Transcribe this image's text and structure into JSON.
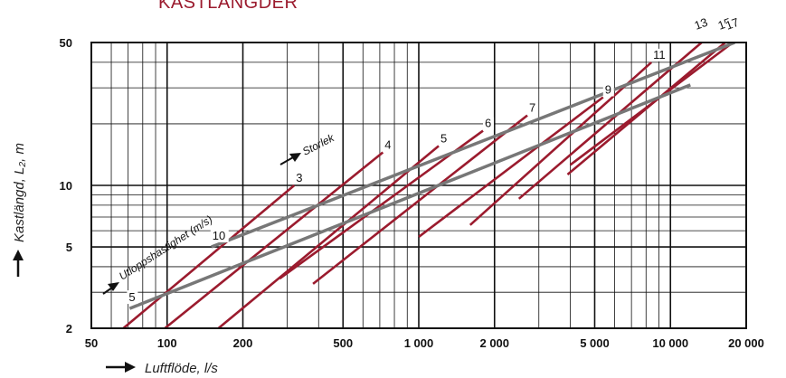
{
  "chart_data": {
    "type": "line",
    "title": "KASTLÄNGDER",
    "xlabel": "Luftflöde, l/s",
    "ylabel": "Kastlängd, L₂, m",
    "xscale": "log",
    "yscale": "log",
    "xlim": [
      50,
      20000
    ],
    "ylim": [
      2,
      50
    ],
    "x_ticks": [
      {
        "value": 50,
        "label": "50"
      },
      {
        "value": 100,
        "label": "100"
      },
      {
        "value": 200,
        "label": "200"
      },
      {
        "value": 500,
        "label": "500"
      },
      {
        "value": 1000,
        "label": "1 000"
      },
      {
        "value": 2000,
        "label": "2 000"
      },
      {
        "value": 5000,
        "label": "5 000"
      },
      {
        "value": 10000,
        "label": "10 000"
      },
      {
        "value": 20000,
        "label": "20 000"
      }
    ],
    "y_ticks": [
      {
        "value": 2,
        "label": "2"
      },
      {
        "value": 5,
        "label": "5"
      },
      {
        "value": 10,
        "label": "10"
      },
      {
        "value": 50,
        "label": "50"
      }
    ],
    "grid": true,
    "annotations": {
      "size_axis": "Storlek",
      "velocity_axis": "Utloppshastighet (m/s)"
    },
    "size_series": [
      {
        "name": "3",
        "x": [
          67,
          320
        ],
        "y": [
          2,
          10
        ]
      },
      {
        "name": "4",
        "x": [
          98,
          720
        ],
        "y": [
          2,
          14.5
        ]
      },
      {
        "name": "5",
        "x": [
          160,
          1200
        ],
        "y": [
          2,
          15.6
        ]
      },
      {
        "name": "6",
        "x": [
          280,
          1800
        ],
        "y": [
          3.5,
          18.5
        ]
      },
      {
        "name": "7",
        "x": [
          380,
          2700
        ],
        "y": [
          3.3,
          22
        ]
      },
      {
        "name": "9",
        "x": [
          1000,
          5400
        ],
        "y": [
          5.6,
          27
        ]
      },
      {
        "name": "11",
        "x": [
          1600,
          8400
        ],
        "y": [
          6.4,
          40
        ]
      },
      {
        "name": "13",
        "x": [
          2500,
          13300
        ],
        "y": [
          8.6,
          50
        ]
      },
      {
        "name": "15",
        "x": [
          3900,
          16500
        ],
        "y": [
          11.3,
          50
        ]
      },
      {
        "name": "17",
        "x": [
          4000,
          17700
        ],
        "y": [
          12.6,
          50
        ]
      }
    ],
    "velocity_series": [
      {
        "name": "5",
        "x": [
          71,
          12000
        ],
        "y": [
          2.5,
          31
        ]
      },
      {
        "name": "10",
        "x": [
          150,
          18000
        ],
        "y": [
          5,
          50
        ]
      }
    ],
    "colors": {
      "size_lines": "#9b1b2e",
      "velocity_lines": "#777777",
      "grid": "#111111",
      "title": "#9b1b2e"
    }
  }
}
